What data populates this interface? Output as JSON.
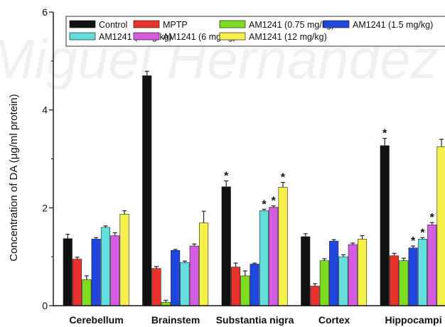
{
  "chart_data": {
    "type": "bar",
    "title": "",
    "xlabel": "",
    "ylabel": "Concentration of DA (μg/ml protein)",
    "ylim": [
      0,
      6
    ],
    "yticks": [
      "0",
      "2",
      "4",
      "6"
    ],
    "grid": false,
    "legend_position": "top",
    "categories": [
      "Cerebellum",
      "Brainstem",
      "Substantia nigra",
      "Cortex",
      "Hippocampi"
    ],
    "series": [
      {
        "name": "Control",
        "color": "#111111",
        "values": [
          1.37,
          4.7,
          2.43,
          1.41,
          3.27
        ],
        "errors": [
          0.09,
          0.09,
          0.12,
          0.06,
          0.15
        ],
        "significant": [
          false,
          false,
          true,
          false,
          true
        ]
      },
      {
        "name": "MPTP",
        "color": "#e8322b",
        "values": [
          0.95,
          0.76,
          0.79,
          0.4,
          1.02
        ],
        "errors": [
          0.04,
          0.04,
          0.08,
          0.05,
          0.05
        ],
        "significant": [
          false,
          false,
          false,
          false,
          false
        ]
      },
      {
        "name": "AM1241 (0.75 mg/kg)",
        "color": "#7ddc1f",
        "values": [
          0.53,
          0.07,
          0.61,
          0.92,
          0.92
        ],
        "errors": [
          0.08,
          0.04,
          0.1,
          0.04,
          0.05
        ],
        "significant": [
          false,
          false,
          false,
          false,
          false
        ]
      },
      {
        "name": "AM1241 (1.5 mg/kg)",
        "color": "#1f47e0",
        "values": [
          1.36,
          1.13,
          0.85,
          1.32,
          1.18
        ],
        "errors": [
          0.03,
          0.02,
          0.02,
          0.03,
          0.04
        ],
        "significant": [
          false,
          false,
          false,
          false,
          true
        ]
      },
      {
        "name": "AM1241 (3 mg/kg)",
        "color": "#62dede",
        "values": [
          1.6,
          0.88,
          1.94,
          1.0,
          1.36
        ],
        "errors": [
          0.03,
          0.03,
          0.03,
          0.04,
          0.03
        ],
        "significant": [
          false,
          false,
          true,
          false,
          true
        ]
      },
      {
        "name": "AM1241 (6 mg/kg)",
        "color": "#d45ce0",
        "values": [
          1.43,
          1.22,
          2.01,
          1.25,
          1.65
        ],
        "errors": [
          0.06,
          0.04,
          0.03,
          0.03,
          0.05
        ],
        "significant": [
          false,
          false,
          true,
          false,
          true
        ]
      },
      {
        "name": "AM1241 (12 mg/kg)",
        "color": "#f5f04a",
        "values": [
          1.87,
          1.69,
          2.42,
          1.36,
          3.25
        ],
        "errors": [
          0.07,
          0.24,
          0.1,
          0.07,
          0.15
        ],
        "significant": [
          false,
          false,
          true,
          false,
          false
        ]
      }
    ],
    "significance_marker": "*",
    "watermark": "Miguel Hernández"
  }
}
